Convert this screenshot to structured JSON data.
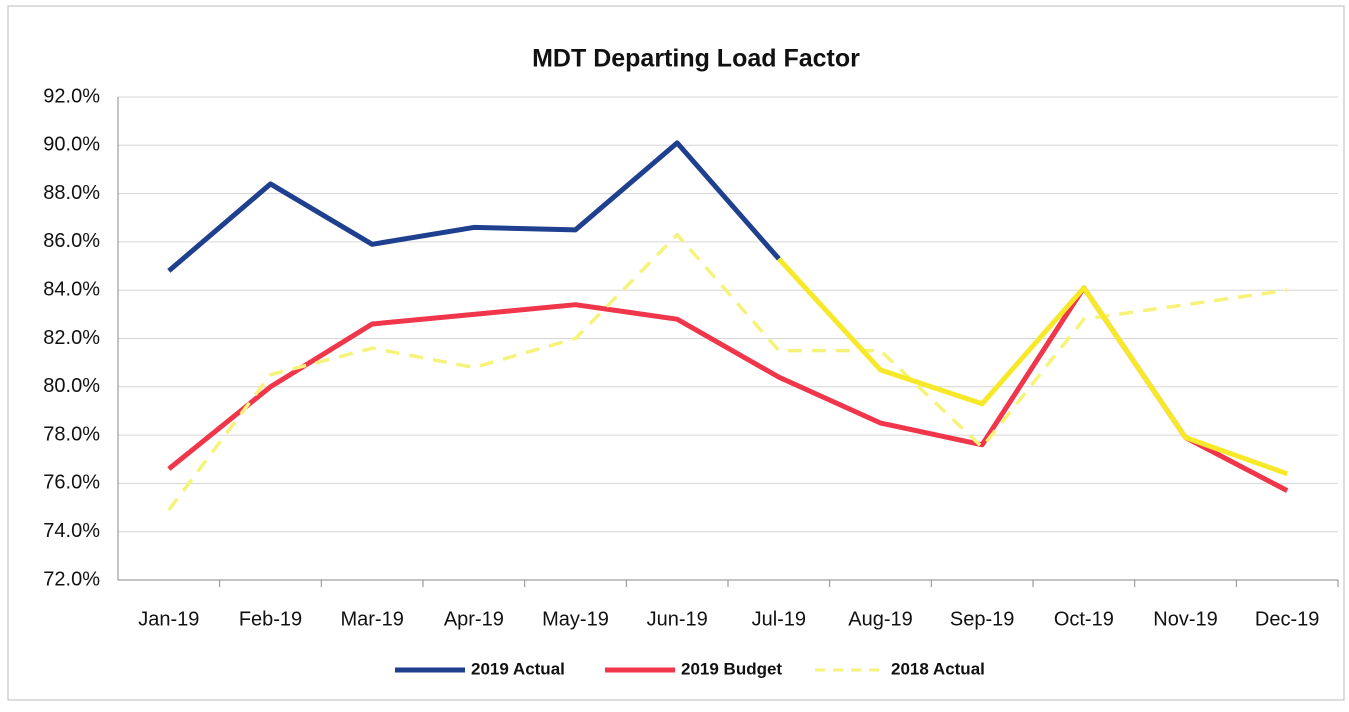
{
  "chart_data": {
    "type": "line",
    "title": "MDT Departing Load Factor",
    "categories": [
      "Jan-19",
      "Feb-19",
      "Mar-19",
      "Apr-19",
      "May-19",
      "Jun-19",
      "Jul-19",
      "Aug-19",
      "Sep-19",
      "Oct-19",
      "Nov-19",
      "Dec-19"
    ],
    "series": [
      {
        "name": "2019 Actual",
        "color": "#1f3f8f",
        "dashed": false,
        "values": [
          84.8,
          88.4,
          85.9,
          86.6,
          86.5,
          90.1,
          85.3,
          null,
          null,
          null,
          null,
          null
        ]
      },
      {
        "name": "2019 Budget",
        "color": "#f0364a",
        "dashed": false,
        "values": [
          76.6,
          80.0,
          82.6,
          83.0,
          83.4,
          82.8,
          80.4,
          78.5,
          77.6,
          84.1,
          77.9,
          75.7
        ]
      },
      {
        "name": "2018 Actual",
        "color": "#f6f37a",
        "dashed": true,
        "values": [
          74.9,
          80.5,
          81.6,
          80.8,
          82.0,
          86.3,
          81.5,
          81.5,
          77.5,
          82.8,
          83.4,
          84.0
        ]
      },
      {
        "color": "#f7e92a",
        "dashed": false,
        "values": [
          null,
          null,
          null,
          null,
          null,
          null,
          85.3,
          80.7,
          79.3,
          84.1,
          77.9,
          76.4
        ]
      }
    ],
    "ylim": [
      72,
      92
    ],
    "yticks": [
      {
        "value": 72,
        "label": "72.0%"
      },
      {
        "value": 74,
        "label": "74.0%"
      },
      {
        "value": 76,
        "label": "76.0%"
      },
      {
        "value": 78,
        "label": "78.0%"
      },
      {
        "value": 80,
        "label": "80.0%"
      },
      {
        "value": 82,
        "label": "82.0%"
      },
      {
        "value": 84,
        "label": "84.0%"
      },
      {
        "value": 86,
        "label": "86.0%"
      },
      {
        "value": 88,
        "label": "88.0%"
      },
      {
        "value": 90,
        "label": "90.0%"
      },
      {
        "value": 92,
        "label": "92.0%"
      }
    ],
    "grid": true,
    "legend": "bottom"
  }
}
